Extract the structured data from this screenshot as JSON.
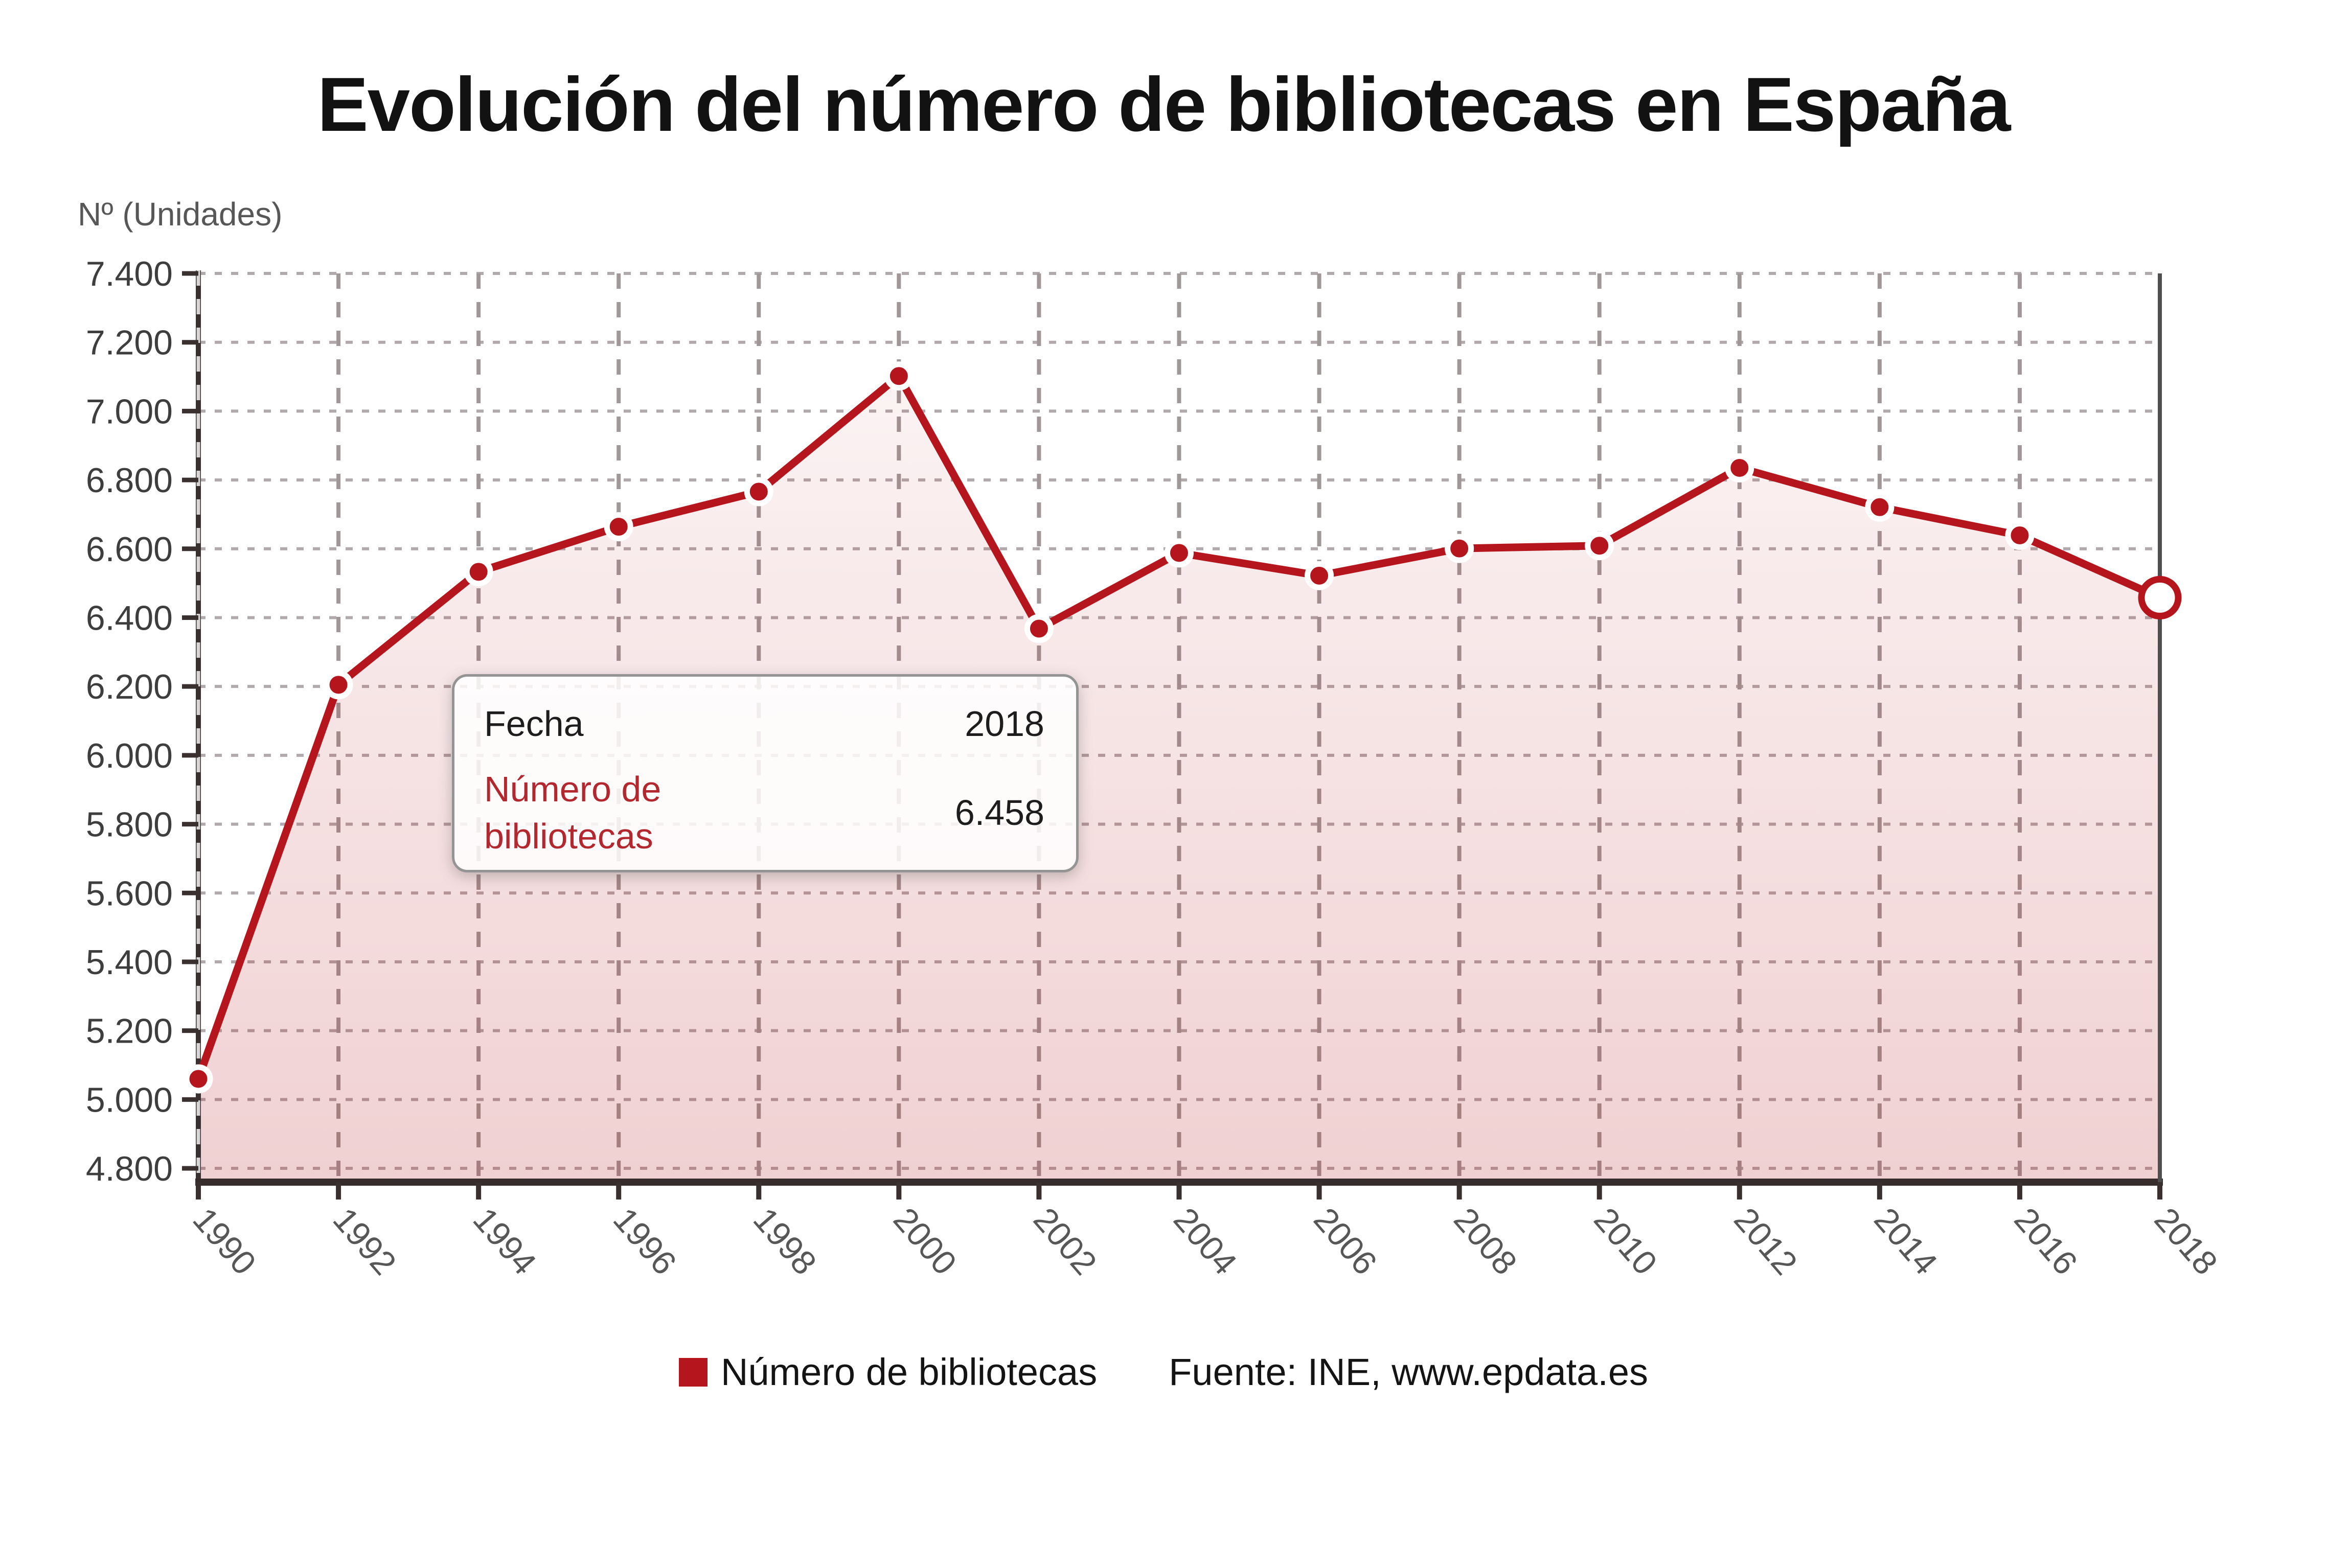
{
  "source": "Fuente: INE, www.epdata.es",
  "tooltip": {
    "date_label": "Fecha",
    "date_value": "2018",
    "series_label": "Número de bibliotecas",
    "series_value": "6.458"
  },
  "colors": {
    "accent": "#b5161d",
    "tooltip_label_red": "#b2282e",
    "area_fill_top": "rgba(181,22,29,0.05)",
    "area_fill_bottom": "rgba(181,22,29,0.20)",
    "h_grid": "#b1a9ab",
    "v_grid": "#a09898",
    "axis": "#3a3030",
    "bottom_axis": "#362c2c",
    "crosshair": "#4f4f4f",
    "y_tick_label": "#3e3e3e",
    "x_tick_label": "#575757"
  },
  "chart_data": {
    "type": "line",
    "title": "Evolución del número de bibliotecas en España",
    "ylabel": "Nº (Unidades)",
    "x_categories": [
      "1990",
      "1992",
      "1994",
      "1996",
      "1998",
      "2000",
      "2002",
      "2004",
      "2006",
      "2008",
      "2010",
      "2012",
      "2014",
      "2016",
      "2018"
    ],
    "series": [
      {
        "name": "Número de bibliotecas",
        "color": "#b5161d",
        "values": [
          5060,
          6205,
          6533,
          6664,
          6766,
          7102,
          6368,
          6588,
          6522,
          6601,
          6609,
          6835,
          6721,
          6639,
          6458
        ]
      }
    ],
    "ylim": [
      4760,
      7400
    ],
    "yticks": [
      4800,
      5000,
      5200,
      5400,
      5600,
      5800,
      6000,
      6200,
      6400,
      6600,
      6800,
      7000,
      7200,
      7400
    ],
    "ytick_labels": [
      "4.800",
      "5.000",
      "5.200",
      "5.400",
      "5.600",
      "5.800",
      "6.000",
      "6.200",
      "6.400",
      "6.600",
      "6.800",
      "7.000",
      "7.200",
      "7.400"
    ],
    "grid": true,
    "legend_position": "bottom",
    "highlighted_point": {
      "category": "2018",
      "value": 6458,
      "display": "6.458"
    }
  }
}
